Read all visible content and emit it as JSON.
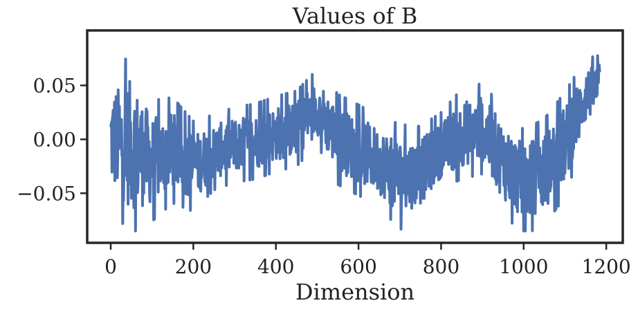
{
  "chart_data": {
    "type": "line",
    "title": "Values of B",
    "xlabel": "Dimension",
    "ylabel": "",
    "xlim": [
      -57,
      1240
    ],
    "ylim": [
      -0.096,
      0.101
    ],
    "x_ticks": [
      0,
      200,
      400,
      600,
      800,
      1000,
      1200
    ],
    "x_tick_labels": [
      "0",
      "200",
      "400",
      "600",
      "800",
      "1000",
      "1200"
    ],
    "y_ticks": [
      0.05,
      0.0,
      -0.05
    ],
    "y_tick_labels": [
      "0.05",
      "0.00",
      "−0.05"
    ],
    "grid": false,
    "legend": "none",
    "series": [
      {
        "color": "#4c72b0",
        "x": [
          0,
          50,
          100,
          150,
          200,
          250,
          300,
          350,
          400,
          450,
          500,
          550,
          600,
          650,
          700,
          750,
          800,
          850,
          900,
          950,
          1000,
          1050,
          1100,
          1150,
          1184
        ],
        "values": [
          0.0,
          -0.005,
          -0.02,
          -0.01,
          -0.025,
          -0.012,
          -0.005,
          -0.002,
          0.005,
          0.01,
          0.03,
          0.0,
          -0.01,
          -0.02,
          -0.035,
          -0.03,
          -0.01,
          0.005,
          0.01,
          -0.02,
          -0.04,
          -0.03,
          -0.005,
          0.04,
          0.05
        ],
        "amplitude": [
          0.045,
          0.06,
          0.04,
          0.035,
          0.03,
          0.025,
          0.025,
          0.025,
          0.025,
          0.025,
          0.025,
          0.03,
          0.03,
          0.03,
          0.035,
          0.03,
          0.025,
          0.03,
          0.03,
          0.035,
          0.035,
          0.035,
          0.035,
          0.025,
          0.02
        ],
        "y_min": -0.085,
        "y_max": 0.091
      }
    ]
  }
}
